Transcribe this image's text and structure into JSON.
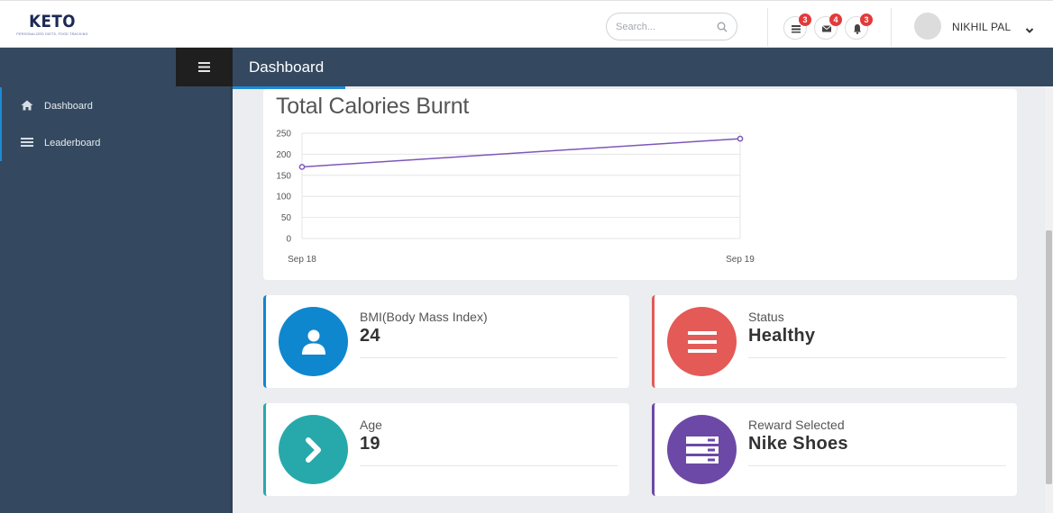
{
  "app": {
    "logo_text": "KETO",
    "logo_tagline": "PERSONALIZED DIETS. FOOD TRACKING"
  },
  "header": {
    "search_placeholder": "Search...",
    "notifications": [
      {
        "icon": "list-icon",
        "count": "3"
      },
      {
        "icon": "envelope-icon",
        "count": "4"
      },
      {
        "icon": "bell-icon",
        "count": "3"
      }
    ],
    "user_name": "NIKHIL PAL"
  },
  "nav": {
    "page_title": "Dashboard"
  },
  "sidebar": {
    "items": [
      {
        "label": "Dashboard",
        "icon": "home-icon"
      },
      {
        "label": "Leaderboard",
        "icon": "bars-icon"
      }
    ]
  },
  "chart_data": {
    "type": "line",
    "title": "Total Calories Burnt",
    "categories": [
      "Sep 18",
      "Sep 19"
    ],
    "values": [
      170,
      237
    ],
    "yticks": [
      0,
      50,
      100,
      150,
      200,
      250
    ],
    "ylim": [
      0,
      250
    ],
    "grid": true,
    "color": "#7e57b8"
  },
  "stats": [
    {
      "label": "BMI(Body Mass Index)",
      "value": "24",
      "icon": "user-icon",
      "color": "#0f87cf"
    },
    {
      "label": "Status",
      "value": "Healthy",
      "icon": "menu-icon",
      "color": "#e35a57"
    },
    {
      "label": "Age",
      "value": "19",
      "icon": "chevron-right-icon",
      "color": "#27a9ab"
    },
    {
      "label": "Reward Selected",
      "value": "Nike Shoes",
      "icon": "server-icon",
      "color": "#6c49a6"
    }
  ]
}
